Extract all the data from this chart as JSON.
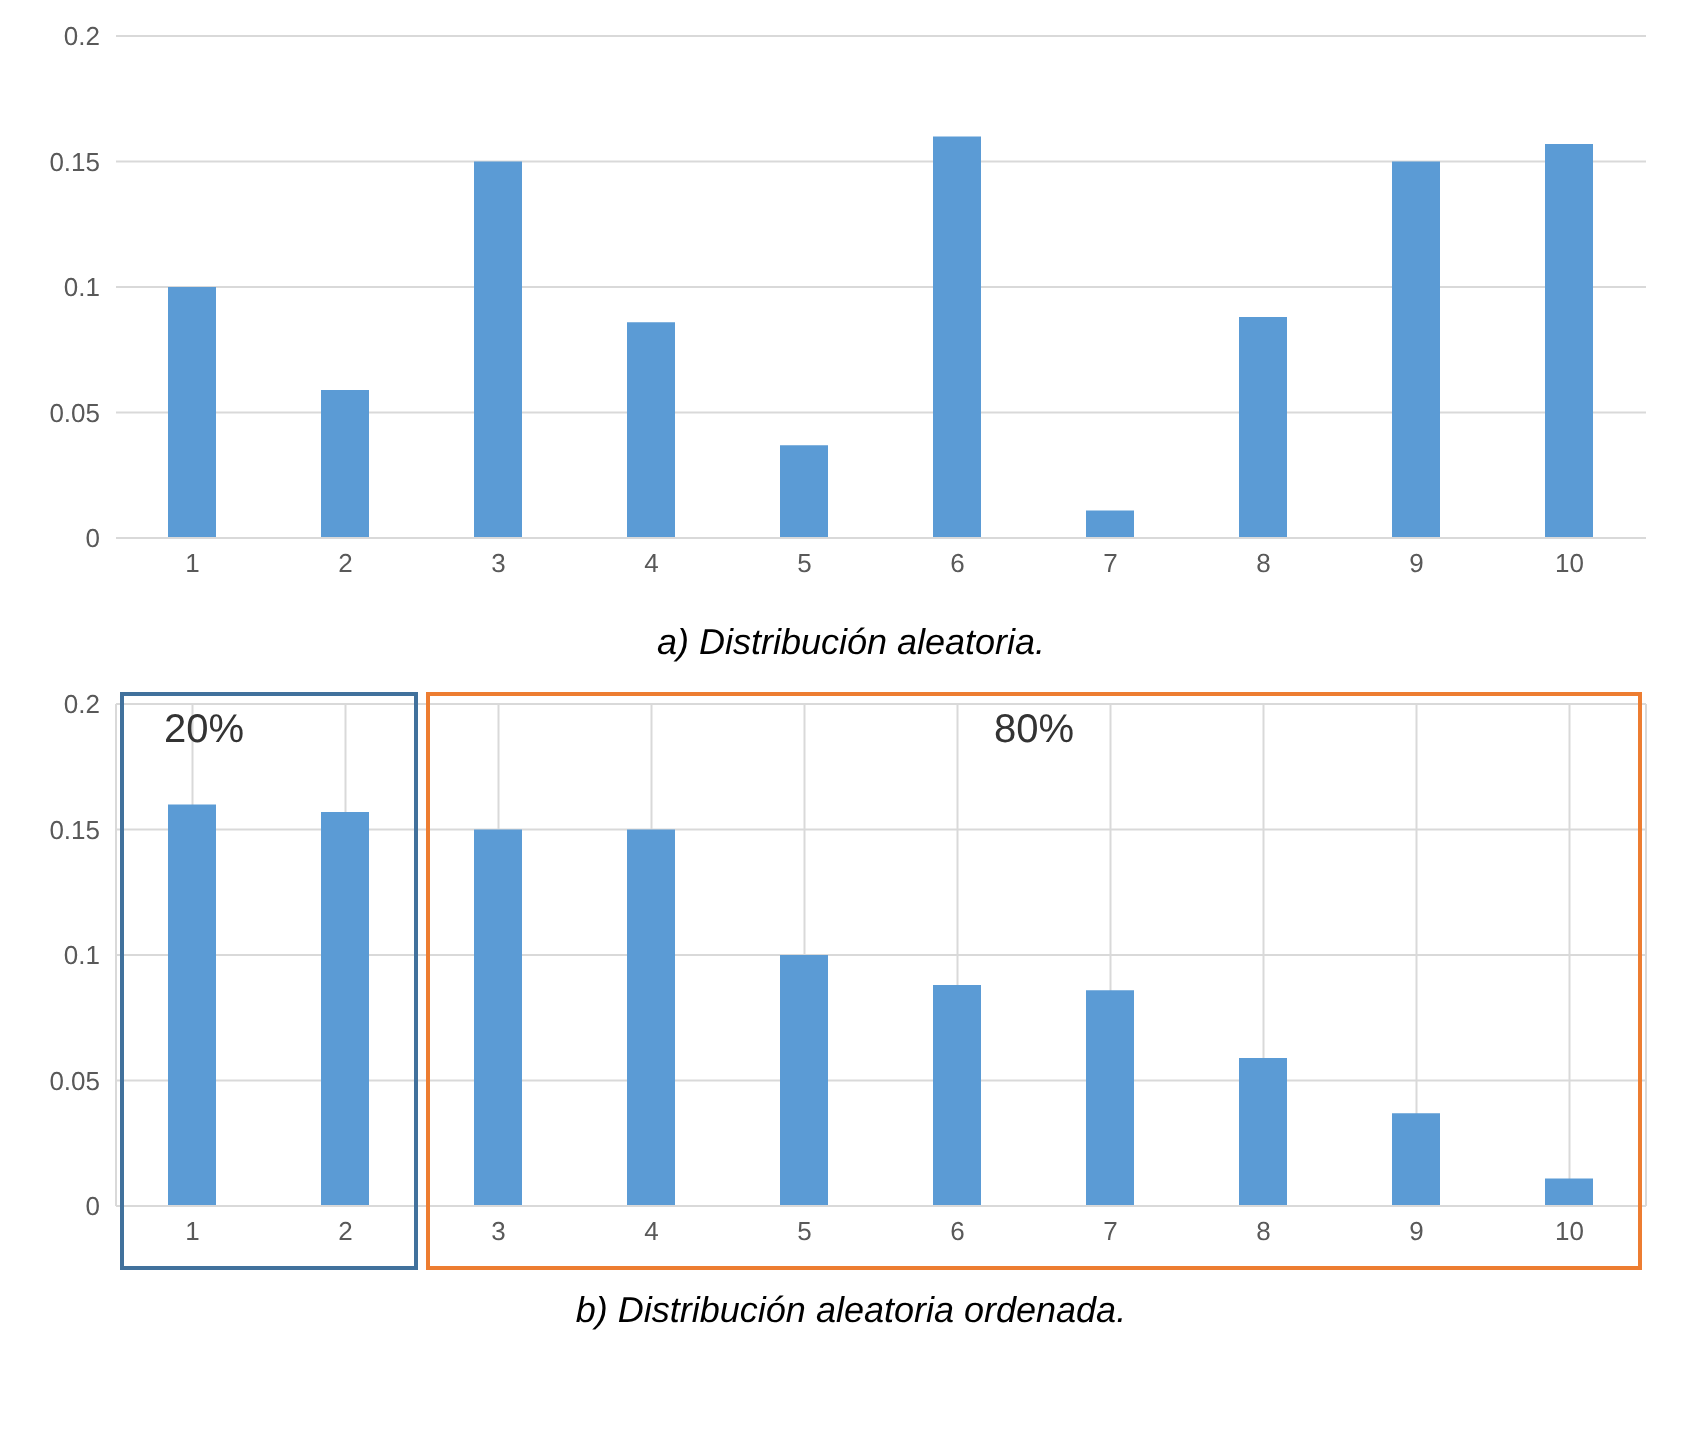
{
  "chart_data": [
    {
      "type": "bar",
      "title": "a) Distribución aleatoria.",
      "categories": [
        "1",
        "2",
        "3",
        "4",
        "5",
        "6",
        "7",
        "8",
        "9",
        "10"
      ],
      "values": [
        0.1,
        0.059,
        0.15,
        0.086,
        0.037,
        0.16,
        0.011,
        0.088,
        0.15,
        0.157
      ],
      "color": "#5b9bd5",
      "ylim": [
        0,
        0.2
      ],
      "yticks": [
        0,
        0.05,
        0.1,
        0.15,
        0.2
      ],
      "grid": "y"
    },
    {
      "type": "bar",
      "title": "b) Distribución aleatoria ordenada.",
      "categories": [
        "1",
        "2",
        "3",
        "4",
        "5",
        "6",
        "7",
        "8",
        "9",
        "10"
      ],
      "values": [
        0.16,
        0.157,
        0.15,
        0.15,
        0.1,
        0.088,
        0.086,
        0.059,
        0.037,
        0.011
      ],
      "color": "#5b9bd5",
      "ylim": [
        0,
        0.2
      ],
      "yticks": [
        0,
        0.05,
        0.1,
        0.15,
        0.2
      ],
      "grid": true,
      "annotations": [
        "20%",
        "80%"
      ]
    }
  ]
}
